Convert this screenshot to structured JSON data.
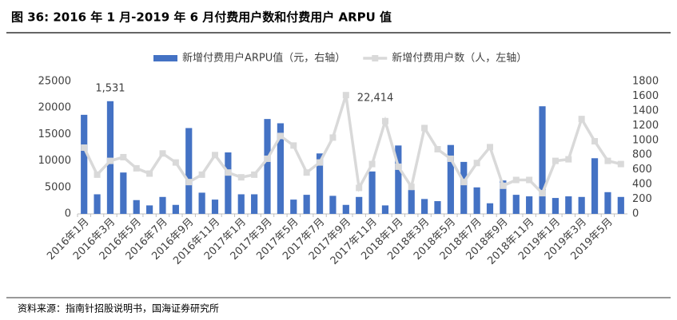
{
  "title": "图 36: 2016 年 1 月-2019 年 6 月付费用户数和付费用户 ARPU 值",
  "source": "资料来源：指南针招股说明书，国海证券研究所",
  "chart_data": {
    "type": "bar-line",
    "categories": [
      "2016年1月",
      null,
      "2016年3月",
      null,
      "2016年5月",
      null,
      "2016年7月",
      null,
      "2016年9月",
      null,
      "2016年11月",
      null,
      "2017年1月",
      null,
      "2017年3月",
      null,
      "2017年5月",
      null,
      "2017年7月",
      null,
      "2017年9月",
      null,
      "2017年11月",
      null,
      "2018年1月",
      null,
      "2018年3月",
      null,
      "2018年5月",
      null,
      "2018年7月",
      null,
      "2018年9月",
      null,
      "2018年11月",
      null,
      "2019年1月",
      null,
      "2019年3月",
      null,
      "2019年5月",
      null
    ],
    "series": [
      {
        "name": "新增付费用户ARPU值（元，右轴）",
        "type": "bar",
        "axis": "y2",
        "color": "#4472c4",
        "values": [
          1346,
          266,
          1531,
          562,
          187,
          115,
          230,
          122,
          1166,
          288,
          194,
          835,
          266,
          266,
          1289,
          1231,
          194,
          259,
          821,
          245,
          122,
          230,
          576,
          115,
          929,
          324,
          202,
          173,
          936,
          706,
          360,
          144,
          454,
          259,
          238,
          1462,
          216,
          238,
          230,
          756,
          295,
          230
        ],
        "value_labels": [
          null,
          null,
          "1,531",
          null,
          null,
          null,
          null,
          null,
          null,
          null,
          null,
          null,
          null,
          null,
          null,
          null,
          null,
          null,
          null,
          null,
          null,
          null,
          null,
          null,
          null,
          null,
          null,
          null,
          null,
          null,
          null,
          null,
          null,
          null,
          null,
          null,
          null,
          null,
          null,
          null,
          null,
          null
        ]
      },
      {
        "name": "新增付费用户数（人，左轴）",
        "type": "line",
        "axis": "y",
        "color": "#d9d9d9",
        "values": [
          12500,
          7400,
          10000,
          10700,
          8600,
          7600,
          11400,
          9700,
          6000,
          7400,
          11100,
          7800,
          6900,
          7400,
          10400,
          14700,
          12900,
          7800,
          9700,
          14400,
          22414,
          4900,
          9400,
          17500,
          8900,
          5100,
          16200,
          12200,
          10400,
          6000,
          9600,
          12600,
          5300,
          6400,
          6400,
          3900,
          10000,
          10300,
          17900,
          13700,
          10000,
          9400
        ],
        "value_labels": [
          null,
          null,
          null,
          null,
          null,
          null,
          null,
          null,
          null,
          null,
          null,
          null,
          null,
          null,
          null,
          null,
          null,
          null,
          null,
          null,
          "22,414",
          null,
          null,
          null,
          null,
          null,
          null,
          null,
          null,
          null,
          null,
          null,
          null,
          null,
          null,
          null,
          null,
          null,
          null,
          null,
          null,
          null
        ]
      }
    ],
    "ylim": [
      0,
      25000
    ],
    "yticks": [
      0,
      5000,
      10000,
      15000,
      20000,
      25000
    ],
    "y2lim": [
      0,
      1800
    ],
    "y2ticks": [
      0,
      200,
      400,
      600,
      800,
      1000,
      1200,
      1400,
      1600,
      1800
    ],
    "legend": "top"
  }
}
